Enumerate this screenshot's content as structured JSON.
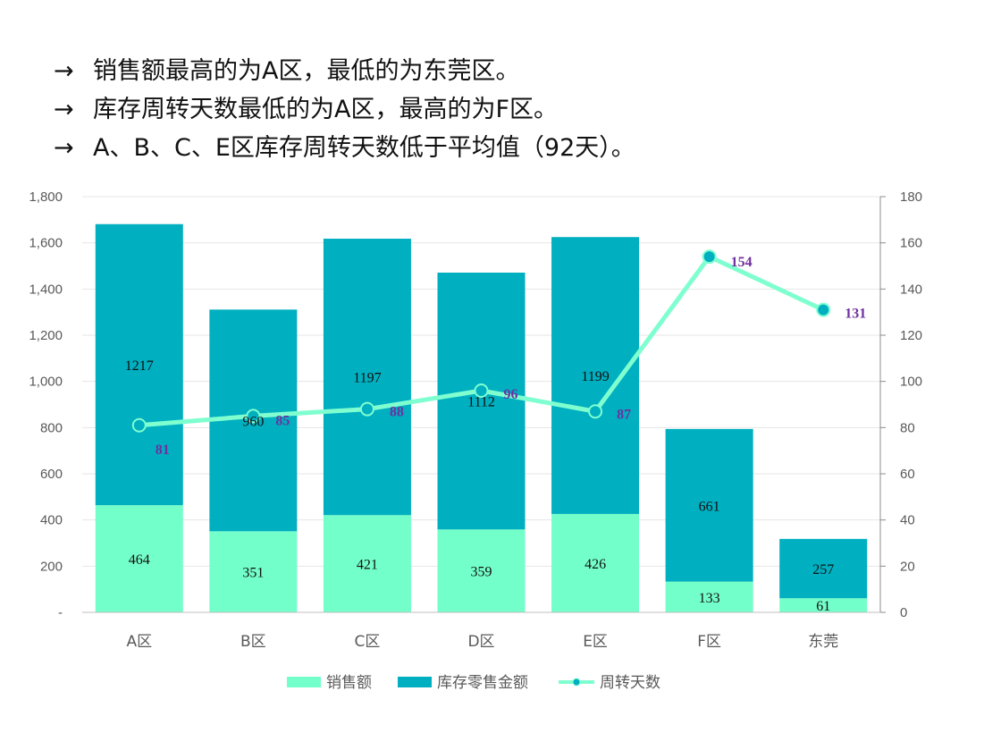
{
  "bullets": [
    {
      "arrow": "→",
      "text": "销售额最高的为A区，最低的为东莞区。"
    },
    {
      "arrow": "→",
      "text": "库存周转天数最低的为A区，最高的为F区。"
    },
    {
      "arrow": "→",
      "text": "A、B、C、E区库存周转天数低于平均值（92天）。"
    }
  ],
  "colors": {
    "sales": "#73FFC9",
    "inventory": "#00AFC0",
    "line": "#7FFFD0",
    "marker": "#00AFC0",
    "line_label": "#7030A0"
  },
  "chart_data": {
    "type": "bar",
    "stacked": true,
    "categories": [
      "A区",
      "B区",
      "C区",
      "D区",
      "E区",
      "F区",
      "东莞"
    ],
    "series": [
      {
        "name": "销售额",
        "type": "bar",
        "axis": "left",
        "values": [
          464,
          351,
          421,
          359,
          426,
          133,
          61
        ]
      },
      {
        "name": "库存零售金额",
        "type": "bar",
        "axis": "left",
        "values": [
          1217,
          960,
          1197,
          1112,
          1199,
          661,
          257
        ]
      },
      {
        "name": "周转天数",
        "type": "line",
        "axis": "right",
        "values": [
          81,
          85,
          88,
          96,
          87,
          154,
          131
        ]
      }
    ],
    "y_left": {
      "min": 0,
      "max": 1800,
      "ticks": [
        "-",
        "200",
        "400",
        "600",
        "800",
        "1,000",
        "1,200",
        "1,400",
        "1,600",
        "1,800"
      ]
    },
    "y_right": {
      "min": 0,
      "max": 180,
      "ticks": [
        "0",
        "20",
        "40",
        "60",
        "80",
        "100",
        "120",
        "140",
        "160",
        "180"
      ]
    },
    "legend": {
      "position": "bottom",
      "items": [
        "销售额",
        "库存零售金额",
        "周转天数"
      ]
    },
    "grid": true
  }
}
